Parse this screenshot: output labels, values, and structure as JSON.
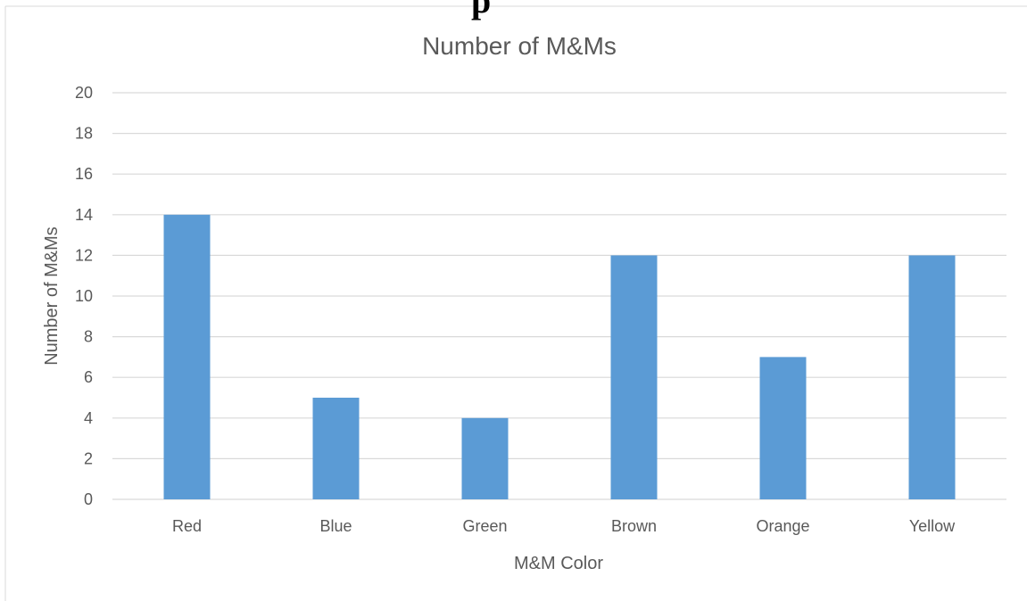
{
  "header_fragment": "p",
  "chart_data": {
    "type": "bar",
    "title": "Number of M&Ms",
    "xlabel": "M&M Color",
    "ylabel": "Number of M&Ms",
    "categories": [
      "Red",
      "Blue",
      "Green",
      "Brown",
      "Orange",
      "Yellow"
    ],
    "values": [
      14,
      5,
      4,
      12,
      7,
      12
    ],
    "ylim": [
      0,
      20
    ],
    "yticks": [
      0,
      2,
      4,
      6,
      8,
      10,
      12,
      14,
      16,
      18,
      20
    ],
    "grid": true,
    "legend": "none",
    "bar_color": "#5b9bd5"
  }
}
